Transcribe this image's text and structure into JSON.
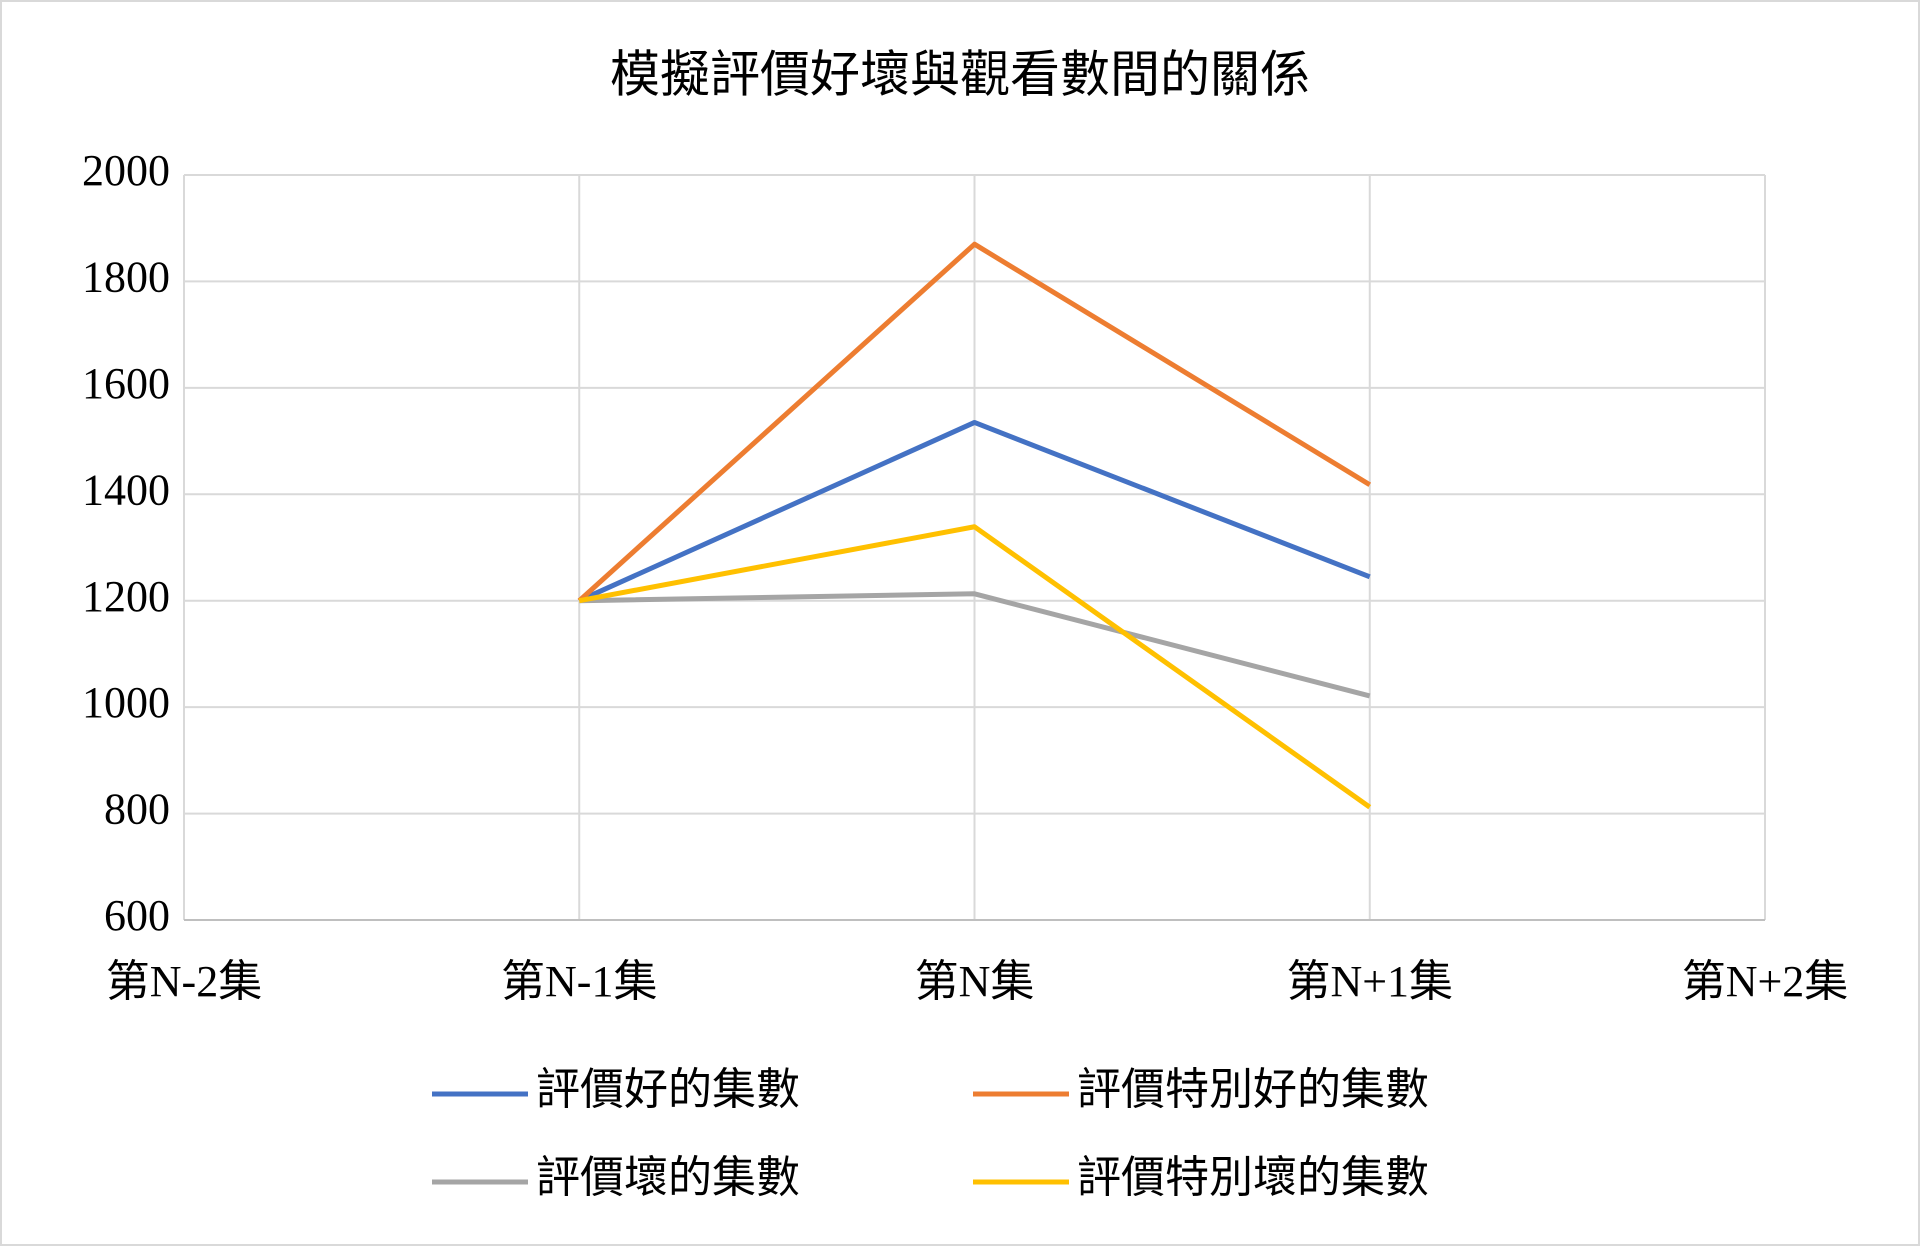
{
  "chart_data": {
    "type": "line",
    "title": "模擬評價好壞與觀看數間的關係",
    "categories": [
      "第N-2集",
      "第N-1集",
      "第N集",
      "第N+1集",
      "第N+2集"
    ],
    "series": [
      {
        "name": "評價好的集數",
        "color": "#4472c4",
        "values": [
          null,
          1200,
          1535,
          1245,
          null
        ]
      },
      {
        "name": "評價特別好的集數",
        "color": "#ed7d31",
        "values": [
          null,
          1200,
          1870,
          1418,
          null
        ]
      },
      {
        "name": "評價壞的集數",
        "color": "#a5a5a5",
        "values": [
          null,
          1200,
          1213,
          1021,
          null
        ]
      },
      {
        "name": "評價特別壞的集數",
        "color": "#ffc000",
        "values": [
          null,
          1200,
          1339,
          812,
          null
        ]
      }
    ],
    "ylim": [
      600,
      2000
    ],
    "yticks": [
      600,
      800,
      1000,
      1200,
      1400,
      1600,
      1800,
      2000
    ],
    "grid": true,
    "legend": "bottom"
  }
}
